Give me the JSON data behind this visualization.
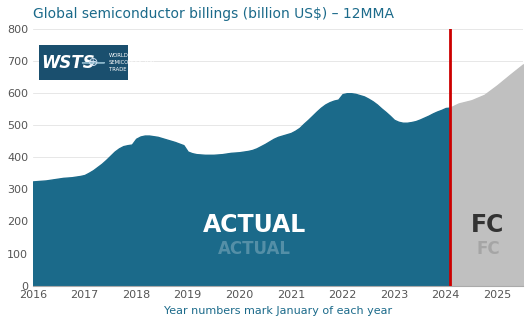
{
  "title": "Global semiconductor billings (billion US$) – 12MMA",
  "xlabel": "Year numbers mark January of each year",
  "ylim": [
    0,
    800
  ],
  "xlim": [
    2016.0,
    2025.5
  ],
  "yticks": [
    0,
    100,
    200,
    300,
    400,
    500,
    600,
    700,
    800
  ],
  "xticks": [
    2016,
    2017,
    2018,
    2019,
    2020,
    2021,
    2022,
    2023,
    2024,
    2025
  ],
  "vline_x": 2024.08,
  "actual_color": "#1b6a8a",
  "forecast_color": "#c0c0c0",
  "vline_color": "#cc0000",
  "title_color": "#1b6a8a",
  "xlabel_color": "#1b6a8a",
  "fc_label": "FC",
  "actual_x": [
    2016.0,
    2016.083,
    2016.167,
    2016.25,
    2016.333,
    2016.417,
    2016.5,
    2016.583,
    2016.667,
    2016.75,
    2016.833,
    2016.917,
    2017.0,
    2017.083,
    2017.167,
    2017.25,
    2017.333,
    2017.417,
    2017.5,
    2017.583,
    2017.667,
    2017.75,
    2017.833,
    2017.917,
    2018.0,
    2018.083,
    2018.167,
    2018.25,
    2018.333,
    2018.417,
    2018.5,
    2018.583,
    2018.667,
    2018.75,
    2018.833,
    2018.917,
    2019.0,
    2019.083,
    2019.167,
    2019.25,
    2019.333,
    2019.417,
    2019.5,
    2019.583,
    2019.667,
    2019.75,
    2019.833,
    2019.917,
    2020.0,
    2020.083,
    2020.167,
    2020.25,
    2020.333,
    2020.417,
    2020.5,
    2020.583,
    2020.667,
    2020.75,
    2020.833,
    2020.917,
    2021.0,
    2021.083,
    2021.167,
    2021.25,
    2021.333,
    2021.417,
    2021.5,
    2021.583,
    2021.667,
    2021.75,
    2021.833,
    2021.917,
    2022.0,
    2022.083,
    2022.167,
    2022.25,
    2022.333,
    2022.417,
    2022.5,
    2022.583,
    2022.667,
    2022.75,
    2022.833,
    2022.917,
    2023.0,
    2023.083,
    2023.167,
    2023.25,
    2023.333,
    2023.417,
    2023.5,
    2023.583,
    2023.667,
    2023.75,
    2023.833,
    2023.917,
    2024.0,
    2024.08
  ],
  "actual_y": [
    325,
    326,
    327,
    328,
    330,
    332,
    334,
    336,
    337,
    338,
    340,
    342,
    345,
    352,
    360,
    370,
    380,
    392,
    405,
    418,
    428,
    435,
    438,
    440,
    458,
    465,
    468,
    468,
    466,
    464,
    460,
    456,
    452,
    448,
    443,
    438,
    418,
    413,
    410,
    409,
    408,
    408,
    408,
    409,
    410,
    412,
    414,
    415,
    416,
    418,
    420,
    423,
    428,
    435,
    442,
    450,
    458,
    464,
    468,
    472,
    476,
    483,
    492,
    505,
    517,
    530,
    543,
    555,
    565,
    572,
    577,
    580,
    597,
    600,
    600,
    598,
    594,
    590,
    583,
    575,
    565,
    553,
    542,
    530,
    517,
    511,
    508,
    508,
    510,
    513,
    518,
    524,
    530,
    537,
    543,
    548,
    554,
    555
  ],
  "forecast_x": [
    2024.08,
    2024.25,
    2024.5,
    2024.75,
    2025.0,
    2025.25,
    2025.5
  ],
  "forecast_y": [
    555,
    568,
    578,
    595,
    625,
    658,
    690
  ],
  "wsts_box_color": "#1a4f6e",
  "background_color": "#ffffff"
}
